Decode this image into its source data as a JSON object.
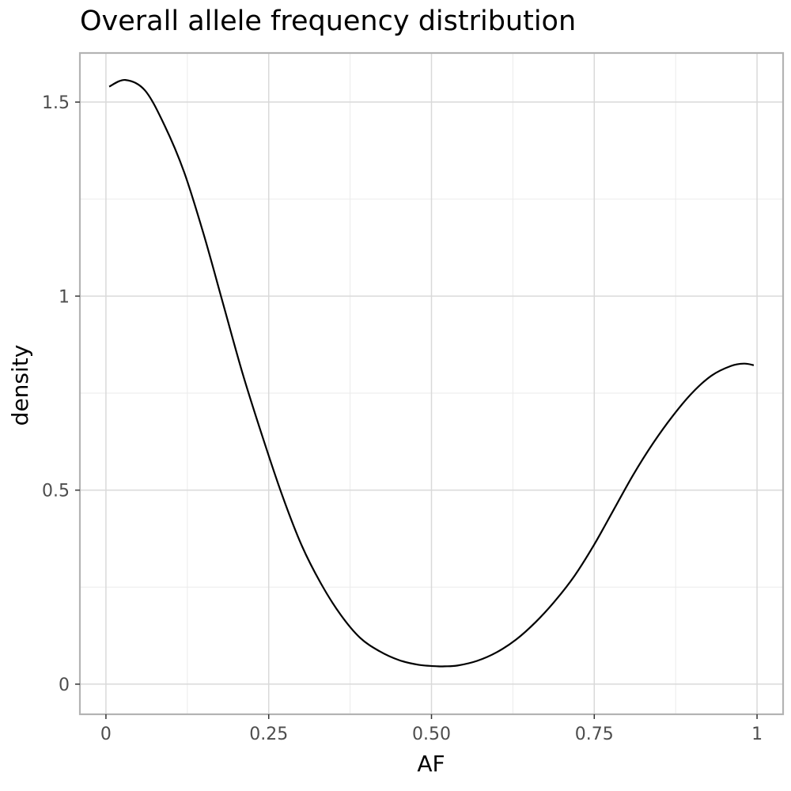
{
  "chart_data": {
    "type": "line",
    "title": "Overall allele frequency distribution",
    "xlabel": "AF",
    "ylabel": "density",
    "xlim": [
      -0.04,
      1.04
    ],
    "ylim": [
      -0.0776,
      1.6265
    ],
    "x_ticks": [
      0,
      0.25,
      0.5,
      0.75,
      1
    ],
    "x_tick_labels": [
      "0",
      "0.25",
      "0.50",
      "0.75",
      "1"
    ],
    "y_ticks": [
      0,
      0.5,
      1,
      1.5
    ],
    "y_tick_labels": [
      "0",
      "0.5",
      "1",
      "1.5"
    ],
    "grid": true,
    "theme": "bw",
    "line_color": "#000000",
    "series": [
      {
        "x": [
          0.005,
          0.03,
          0.06,
          0.09,
          0.12,
          0.15,
          0.18,
          0.21,
          0.24,
          0.27,
          0.3,
          0.33,
          0.36,
          0.39,
          0.42,
          0.45,
          0.48,
          0.51,
          0.52,
          0.54,
          0.57,
          0.6,
          0.63,
          0.66,
          0.69,
          0.72,
          0.75,
          0.78,
          0.81,
          0.84,
          0.87,
          0.9,
          0.93,
          0.96,
          0.98,
          0.995
        ],
        "y": [
          1.54,
          1.557,
          1.53,
          1.44,
          1.32,
          1.16,
          0.98,
          0.8,
          0.64,
          0.49,
          0.36,
          0.26,
          0.18,
          0.12,
          0.085,
          0.062,
          0.05,
          0.046,
          0.046,
          0.048,
          0.06,
          0.082,
          0.115,
          0.16,
          0.215,
          0.28,
          0.36,
          0.45,
          0.54,
          0.62,
          0.69,
          0.75,
          0.795,
          0.82,
          0.826,
          0.822
        ]
      }
    ]
  }
}
